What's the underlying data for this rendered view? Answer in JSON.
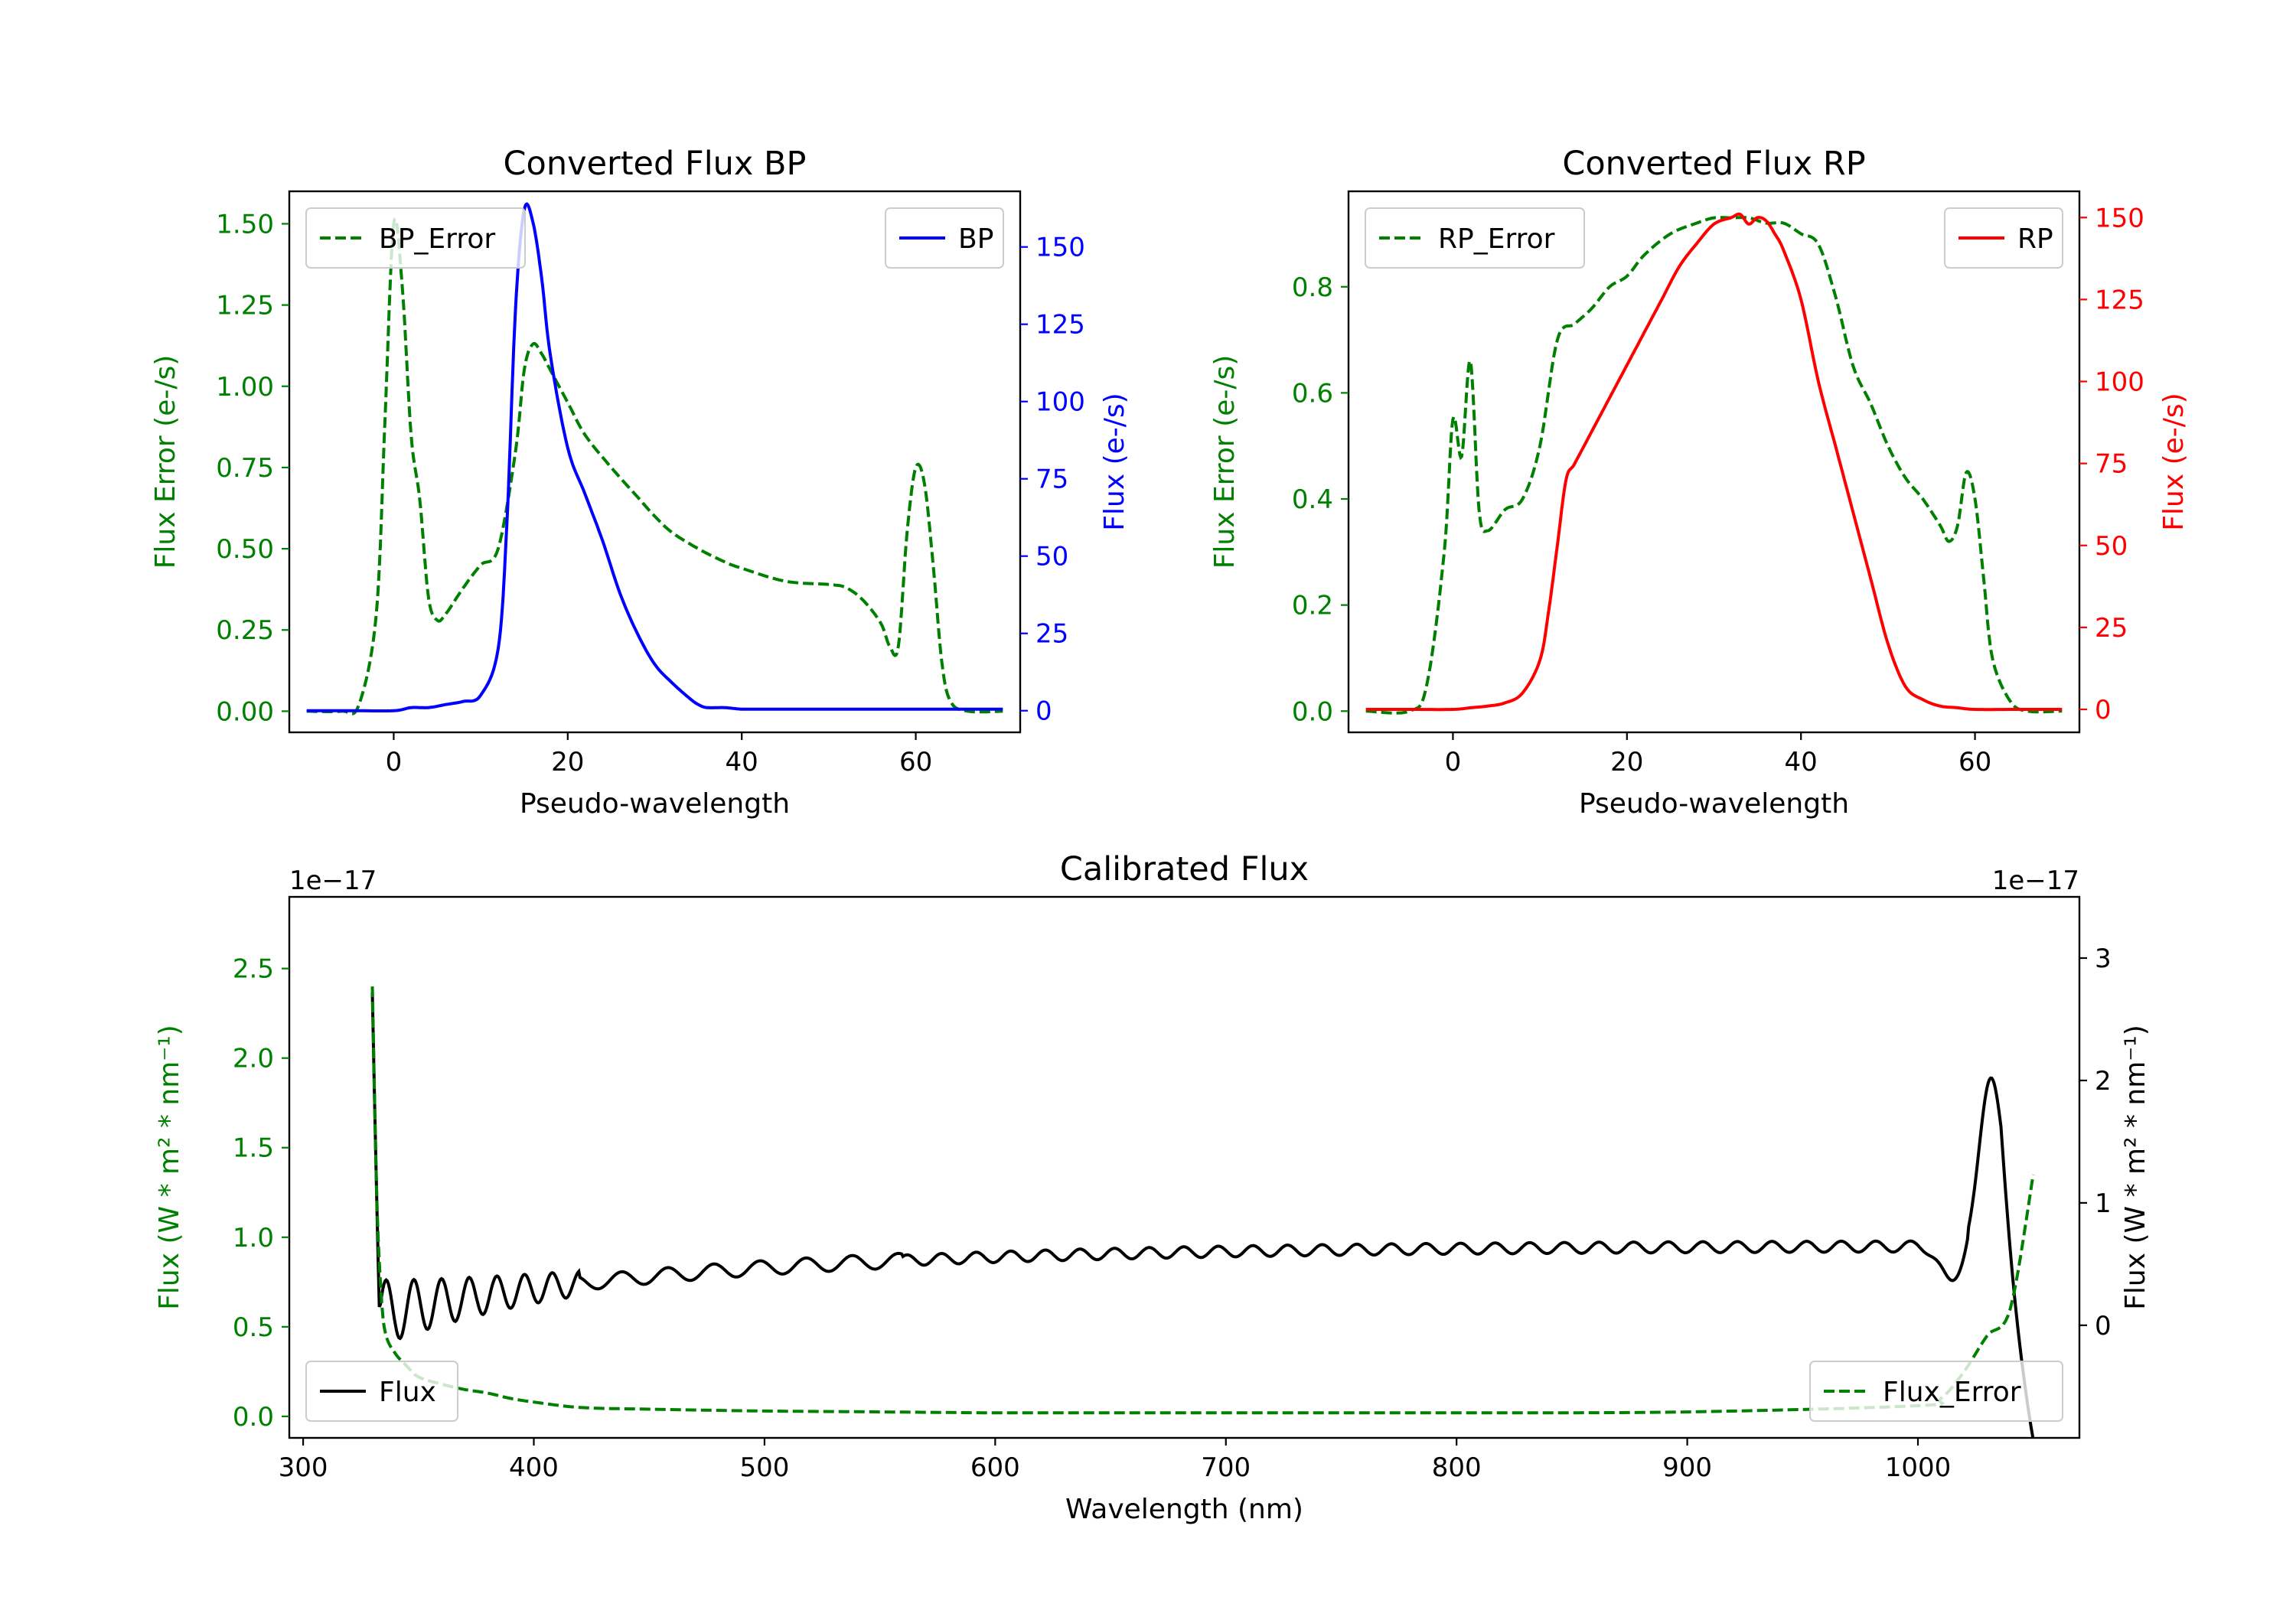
{
  "chart_data": [
    {
      "type": "line",
      "title": "Converted Flux BP",
      "xlabel": "Pseudo-wavelength",
      "xlim": [
        -12,
        72
      ],
      "xticks": [
        0,
        20,
        40,
        60
      ],
      "left_axis": {
        "label": "Flux Error (e-/s)",
        "color": "#008000",
        "ylim": [
          -0.065,
          1.6
        ],
        "ticks": [
          "0.00",
          "0.25",
          "0.50",
          "0.75",
          "1.00",
          "1.25",
          "1.50"
        ],
        "tick_values": [
          0,
          0.25,
          0.5,
          0.75,
          1.0,
          1.25,
          1.5
        ]
      },
      "right_axis": {
        "label": "Flux (e-/s)",
        "color": "#0000ff",
        "ylim": [
          -7,
          168
        ],
        "ticks": [
          "0",
          "25",
          "50",
          "75",
          "100",
          "125",
          "150"
        ],
        "tick_values": [
          0,
          25,
          50,
          75,
          100,
          125,
          150
        ]
      },
      "series": [
        {
          "name": "BP_Error",
          "axis": "left",
          "color": "#008000",
          "style": "dashed",
          "x": [
            -10,
            -6,
            -4,
            -2,
            -1,
            0,
            1,
            2,
            3,
            4,
            5,
            6,
            8,
            10,
            12,
            14,
            15,
            16,
            17,
            18,
            20,
            22,
            25,
            28,
            30,
            32,
            35,
            38,
            40,
            45,
            50,
            52,
            54,
            56,
            57,
            58,
            59,
            60,
            61,
            62,
            63,
            64,
            66,
            70
          ],
          "y": [
            0,
            0,
            0.02,
            0.3,
            0.9,
            1.5,
            1.3,
            0.85,
            0.65,
            0.35,
            0.28,
            0.3,
            0.38,
            0.45,
            0.5,
            0.8,
            1.05,
            1.13,
            1.1,
            1.05,
            0.95,
            0.85,
            0.75,
            0.66,
            0.6,
            0.55,
            0.5,
            0.46,
            0.44,
            0.4,
            0.39,
            0.38,
            0.34,
            0.27,
            0.2,
            0.2,
            0.55,
            0.75,
            0.7,
            0.45,
            0.15,
            0.03,
            0,
            0
          ]
        },
        {
          "name": "BP",
          "axis": "right",
          "color": "#0000ff",
          "style": "solid",
          "x": [
            -10,
            -5,
            0,
            2,
            4,
            6,
            8,
            10,
            12,
            13,
            14,
            15,
            16,
            17,
            18,
            20,
            22,
            24,
            26,
            28,
            30,
            32,
            34,
            35,
            36,
            38,
            40,
            42,
            45,
            50,
            55,
            60,
            65,
            70
          ],
          "y": [
            0,
            0,
            0,
            1,
            1,
            2,
            3,
            5,
            20,
            60,
            130,
            162,
            158,
            140,
            115,
            85,
            70,
            55,
            38,
            25,
            15,
            9,
            4,
            2,
            1,
            1,
            0.5,
            0.5,
            0.5,
            0.5,
            0.5,
            0.5,
            0.5,
            0.5
          ]
        }
      ],
      "legends": {
        "BP_Error": "upper left",
        "BP": "upper right"
      }
    },
    {
      "type": "line",
      "title": "Converted Flux RP",
      "xlabel": "Pseudo-wavelength",
      "xlim": [
        -12,
        72
      ],
      "xticks": [
        0,
        20,
        40,
        60
      ],
      "left_axis": {
        "label": "Flux Error (e-/s)",
        "color": "#008000",
        "ylim": [
          -0.04,
          0.98
        ],
        "ticks": [
          "0.0",
          "0.2",
          "0.4",
          "0.6",
          "0.8"
        ],
        "tick_values": [
          0,
          0.2,
          0.4,
          0.6,
          0.8
        ]
      },
      "right_axis": {
        "label": "Flux (e-/s)",
        "color": "#ff0000",
        "ylim": [
          -7,
          158
        ],
        "ticks": [
          "0",
          "25",
          "50",
          "75",
          "100",
          "125",
          "150"
        ],
        "tick_values": [
          0,
          25,
          50,
          75,
          100,
          125,
          150
        ]
      },
      "series": [
        {
          "name": "RP_Error",
          "axis": "left",
          "color": "#008000",
          "style": "dashed",
          "x": [
            -10,
            -5,
            -3,
            -1,
            0,
            1,
            2,
            3,
            4,
            6,
            8,
            10,
            12,
            14,
            16,
            18,
            20,
            22,
            25,
            28,
            30,
            32,
            34,
            36,
            38,
            40,
            42,
            44,
            46,
            48,
            50,
            52,
            54,
            56,
            57,
            58,
            59,
            60,
            61,
            62,
            64,
            66,
            70
          ],
          "y": [
            0,
            0,
            0.05,
            0.3,
            0.55,
            0.48,
            0.66,
            0.38,
            0.34,
            0.38,
            0.4,
            0.5,
            0.7,
            0.73,
            0.76,
            0.8,
            0.82,
            0.86,
            0.9,
            0.92,
            0.93,
            0.93,
            0.93,
            0.92,
            0.92,
            0.9,
            0.88,
            0.78,
            0.65,
            0.58,
            0.5,
            0.44,
            0.4,
            0.35,
            0.32,
            0.35,
            0.45,
            0.4,
            0.25,
            0.1,
            0.02,
            0,
            0
          ]
        },
        {
          "name": "RP",
          "axis": "right",
          "color": "#ff0000",
          "style": "solid",
          "x": [
            -10,
            -5,
            0,
            2,
            4,
            6,
            8,
            10,
            11,
            12,
            13,
            14,
            16,
            18,
            20,
            22,
            24,
            26,
            28,
            30,
            32,
            33,
            34,
            35,
            36,
            37,
            38,
            40,
            42,
            44,
            46,
            48,
            50,
            52,
            54,
            56,
            58,
            60,
            65,
            70
          ],
          "y": [
            0,
            0,
            0,
            0.5,
            1,
            2,
            5,
            15,
            30,
            50,
            70,
            75,
            85,
            95,
            105,
            115,
            125,
            135,
            142,
            148,
            150,
            151,
            148,
            150,
            149,
            145,
            140,
            125,
            100,
            80,
            60,
            40,
            20,
            7,
            3,
            1,
            0.5,
            0,
            0,
            0
          ]
        }
      ],
      "legends": {
        "RP_Error": "upper left",
        "RP": "upper right"
      }
    },
    {
      "type": "line",
      "title": "Calibrated Flux",
      "xlabel": "Wavelength (nm)",
      "xlim": [
        294,
        1070
      ],
      "xticks": [
        300,
        400,
        500,
        600,
        700,
        800,
        900,
        1000
      ],
      "left_axis": {
        "label": "Flux (W * m² * nm⁻¹)",
        "color": "#008000",
        "offset": "1e−17",
        "ylim": [
          -0.12,
          2.9
        ],
        "ticks": [
          "0.0",
          "0.5",
          "1.0",
          "1.5",
          "2.0",
          "2.5"
        ],
        "tick_values": [
          0,
          0.5,
          1.0,
          1.5,
          2.0,
          2.5
        ]
      },
      "right_axis": {
        "label": "Flux (W * m² * nm⁻¹)",
        "color": "#000000",
        "offset": "1e−17",
        "ylim": [
          -0.92,
          3.5
        ],
        "ticks": [
          "0",
          "1",
          "2",
          "3"
        ],
        "tick_values": [
          0,
          1,
          2,
          3
        ]
      },
      "series": [
        {
          "name": "Flux",
          "axis": "right",
          "color": "#000000",
          "style": "solid",
          "x_start": 330,
          "x_end": 1050,
          "note": "computed as smooth oscillating curve with sharp spike at 330 nm and peak near 1032 nm"
        },
        {
          "name": "Flux_Error",
          "axis": "left",
          "color": "#008000",
          "style": "dashed",
          "x": [
            330,
            332,
            334,
            336,
            340,
            345,
            350,
            360,
            370,
            380,
            390,
            400,
            420,
            450,
            500,
            550,
            600,
            640,
            700,
            800,
            900,
            1000,
            1010,
            1020,
            1030,
            1040,
            1050
          ],
          "y": [
            2.4,
            1.2,
            0.65,
            0.45,
            0.35,
            0.28,
            0.22,
            0.18,
            0.15,
            0.13,
            0.1,
            0.08,
            0.05,
            0.04,
            0.03,
            0.025,
            0.02,
            0.02,
            0.02,
            0.02,
            0.025,
            0.06,
            0.1,
            0.25,
            0.45,
            0.6,
            1.35
          ]
        }
      ],
      "legends": {
        "Flux": "lower left",
        "Flux_Error": "lower right"
      }
    }
  ]
}
